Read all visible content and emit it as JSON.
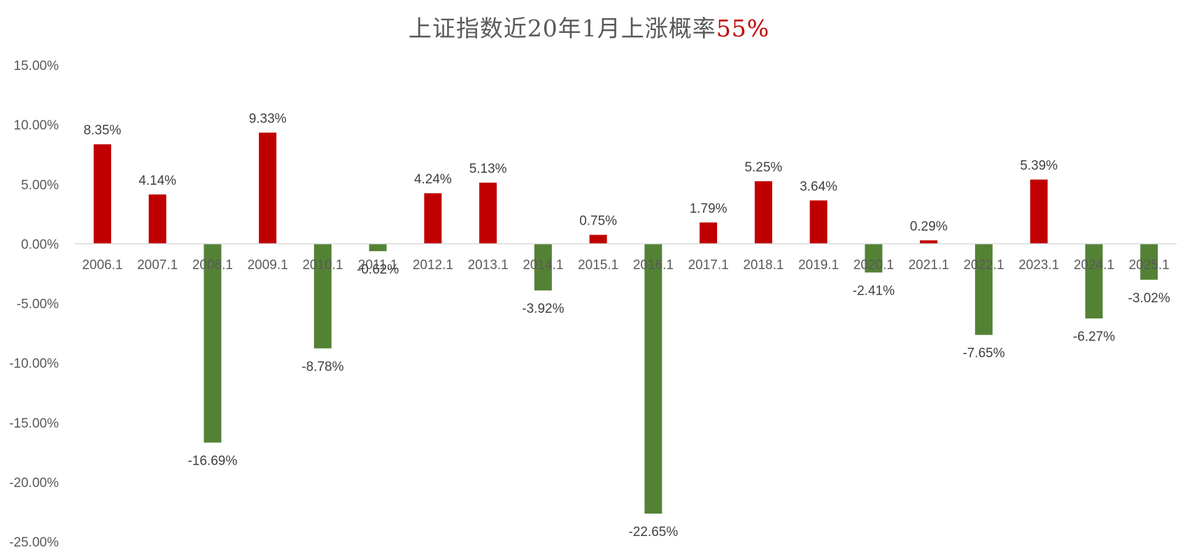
{
  "chart_data": {
    "type": "bar",
    "title": "上证指数近20年1月上涨概率",
    "title_highlight": "55%",
    "title_highlight_color": "#c00000",
    "xlabel": "",
    "ylabel": "",
    "ylim": [
      -0.25,
      0.15
    ],
    "yticks": [
      0.15,
      0.1,
      0.05,
      0.0,
      -0.05,
      -0.1,
      -0.15,
      -0.2,
      -0.25
    ],
    "ytick_labels": [
      "15.00%",
      "10.00%",
      "5.00%",
      "0.00%",
      "-5.00%",
      "-10.00%",
      "-15.00%",
      "-20.00%",
      "-25.00%"
    ],
    "grid": false,
    "legend": "none",
    "positive_color": "#c00000",
    "negative_color": "#548235",
    "categories": [
      "2006.1",
      "2007.1",
      "2008.1",
      "2009.1",
      "2010.1",
      "2011.1",
      "2012.1",
      "2013.1",
      "2014.1",
      "2015.1",
      "2016.1",
      "2017.1",
      "2018.1",
      "2019.1",
      "2020.1",
      "2021.1",
      "2022.1",
      "2023.1",
      "2024.1",
      "2025.1"
    ],
    "values": [
      0.0835,
      0.0414,
      -0.1669,
      0.0933,
      -0.0878,
      -0.0062,
      0.0424,
      0.0513,
      -0.0392,
      0.0075,
      -0.2265,
      0.0179,
      0.0525,
      0.0364,
      -0.0241,
      0.0029,
      -0.0765,
      0.0539,
      -0.0627,
      -0.0302
    ],
    "data_labels": [
      "8.35%",
      "4.14%",
      "-16.69%",
      "9.33%",
      "-8.78%",
      "-0.62%",
      "4.24%",
      "5.13%",
      "-3.92%",
      "0.75%",
      "-22.65%",
      "1.79%",
      "5.25%",
      "3.64%",
      "-2.41%",
      "0.29%",
      "-7.65%",
      "5.39%",
      "-6.27%",
      "-3.02%"
    ]
  }
}
